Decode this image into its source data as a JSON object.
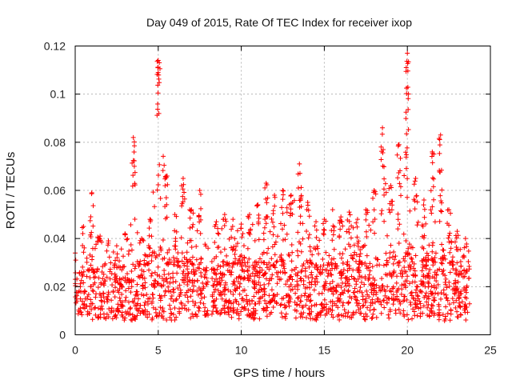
{
  "chart_data": {
    "type": "scatter",
    "title": "Day 049 of 2015, Rate Of TEC Index for receiver ixop",
    "xlabel": "GPS time / hours",
    "ylabel": "ROTI / TECUs",
    "xlim": [
      0,
      25
    ],
    "ylim": [
      0,
      0.12
    ],
    "xticks": [
      0,
      5,
      10,
      15,
      20,
      25
    ],
    "yticks": [
      0,
      0.02,
      0.04,
      0.06,
      0.08,
      0.1,
      0.12
    ],
    "xtick_labels": [
      "0",
      "5",
      "10",
      "15",
      "20",
      "25"
    ],
    "ytick_labels": [
      "0",
      "0.02",
      "0.04",
      "0.06",
      "0.08",
      "0.1",
      "0.12"
    ],
    "grid": true,
    "legend": "none",
    "marker": "plus",
    "color": "#ff0000",
    "data_gap_hours": [
      8.0,
      8.2
    ],
    "x_extent": [
      0,
      23.75
    ],
    "envelope": {
      "x": [
        0.0,
        0.5,
        1.0,
        1.5,
        2.0,
        2.5,
        3.0,
        3.5,
        4.0,
        4.5,
        5.0,
        5.5,
        6.0,
        6.5,
        7.0,
        7.5,
        8.0,
        8.5,
        9.0,
        9.5,
        10.0,
        10.5,
        11.0,
        11.5,
        12.0,
        12.5,
        13.0,
        13.5,
        14.0,
        14.5,
        15.0,
        15.5,
        16.0,
        16.5,
        17.0,
        17.5,
        18.0,
        18.5,
        19.0,
        19.5,
        20.0,
        20.5,
        21.0,
        21.5,
        22.0,
        22.5,
        23.0,
        23.5
      ],
      "y_min": [
        0.009,
        0.008,
        0.006,
        0.007,
        0.006,
        0.007,
        0.006,
        0.006,
        0.007,
        0.006,
        0.007,
        0.006,
        0.006,
        0.007,
        0.007,
        0.007,
        0.008,
        0.009,
        0.008,
        0.007,
        0.006,
        0.007,
        0.006,
        0.007,
        0.008,
        0.007,
        0.006,
        0.007,
        0.007,
        0.006,
        0.007,
        0.007,
        0.006,
        0.007,
        0.007,
        0.006,
        0.007,
        0.006,
        0.007,
        0.008,
        0.006,
        0.007,
        0.008,
        0.007,
        0.006,
        0.005,
        0.006,
        0.006
      ],
      "y_max": [
        0.034,
        0.045,
        0.059,
        0.041,
        0.039,
        0.037,
        0.042,
        0.082,
        0.04,
        0.048,
        0.114,
        0.066,
        0.05,
        0.065,
        0.052,
        0.06,
        0.036,
        0.047,
        0.05,
        0.048,
        0.046,
        0.05,
        0.054,
        0.063,
        0.058,
        0.06,
        0.058,
        0.071,
        0.055,
        0.047,
        0.048,
        0.052,
        0.049,
        0.051,
        0.048,
        0.052,
        0.06,
        0.086,
        0.062,
        0.079,
        0.117,
        0.065,
        0.056,
        0.076,
        0.083,
        0.052,
        0.043,
        0.04
      ],
      "y_typical_upper": [
        0.025,
        0.026,
        0.027,
        0.027,
        0.027,
        0.028,
        0.028,
        0.03,
        0.028,
        0.03,
        0.034,
        0.031,
        0.029,
        0.032,
        0.03,
        0.028,
        0.026,
        0.027,
        0.029,
        0.03,
        0.029,
        0.03,
        0.03,
        0.03,
        0.029,
        0.031,
        0.03,
        0.031,
        0.03,
        0.029,
        0.029,
        0.029,
        0.03,
        0.029,
        0.029,
        0.03,
        0.031,
        0.032,
        0.031,
        0.032,
        0.034,
        0.032,
        0.031,
        0.031,
        0.032,
        0.03,
        0.029,
        0.028
      ]
    }
  }
}
